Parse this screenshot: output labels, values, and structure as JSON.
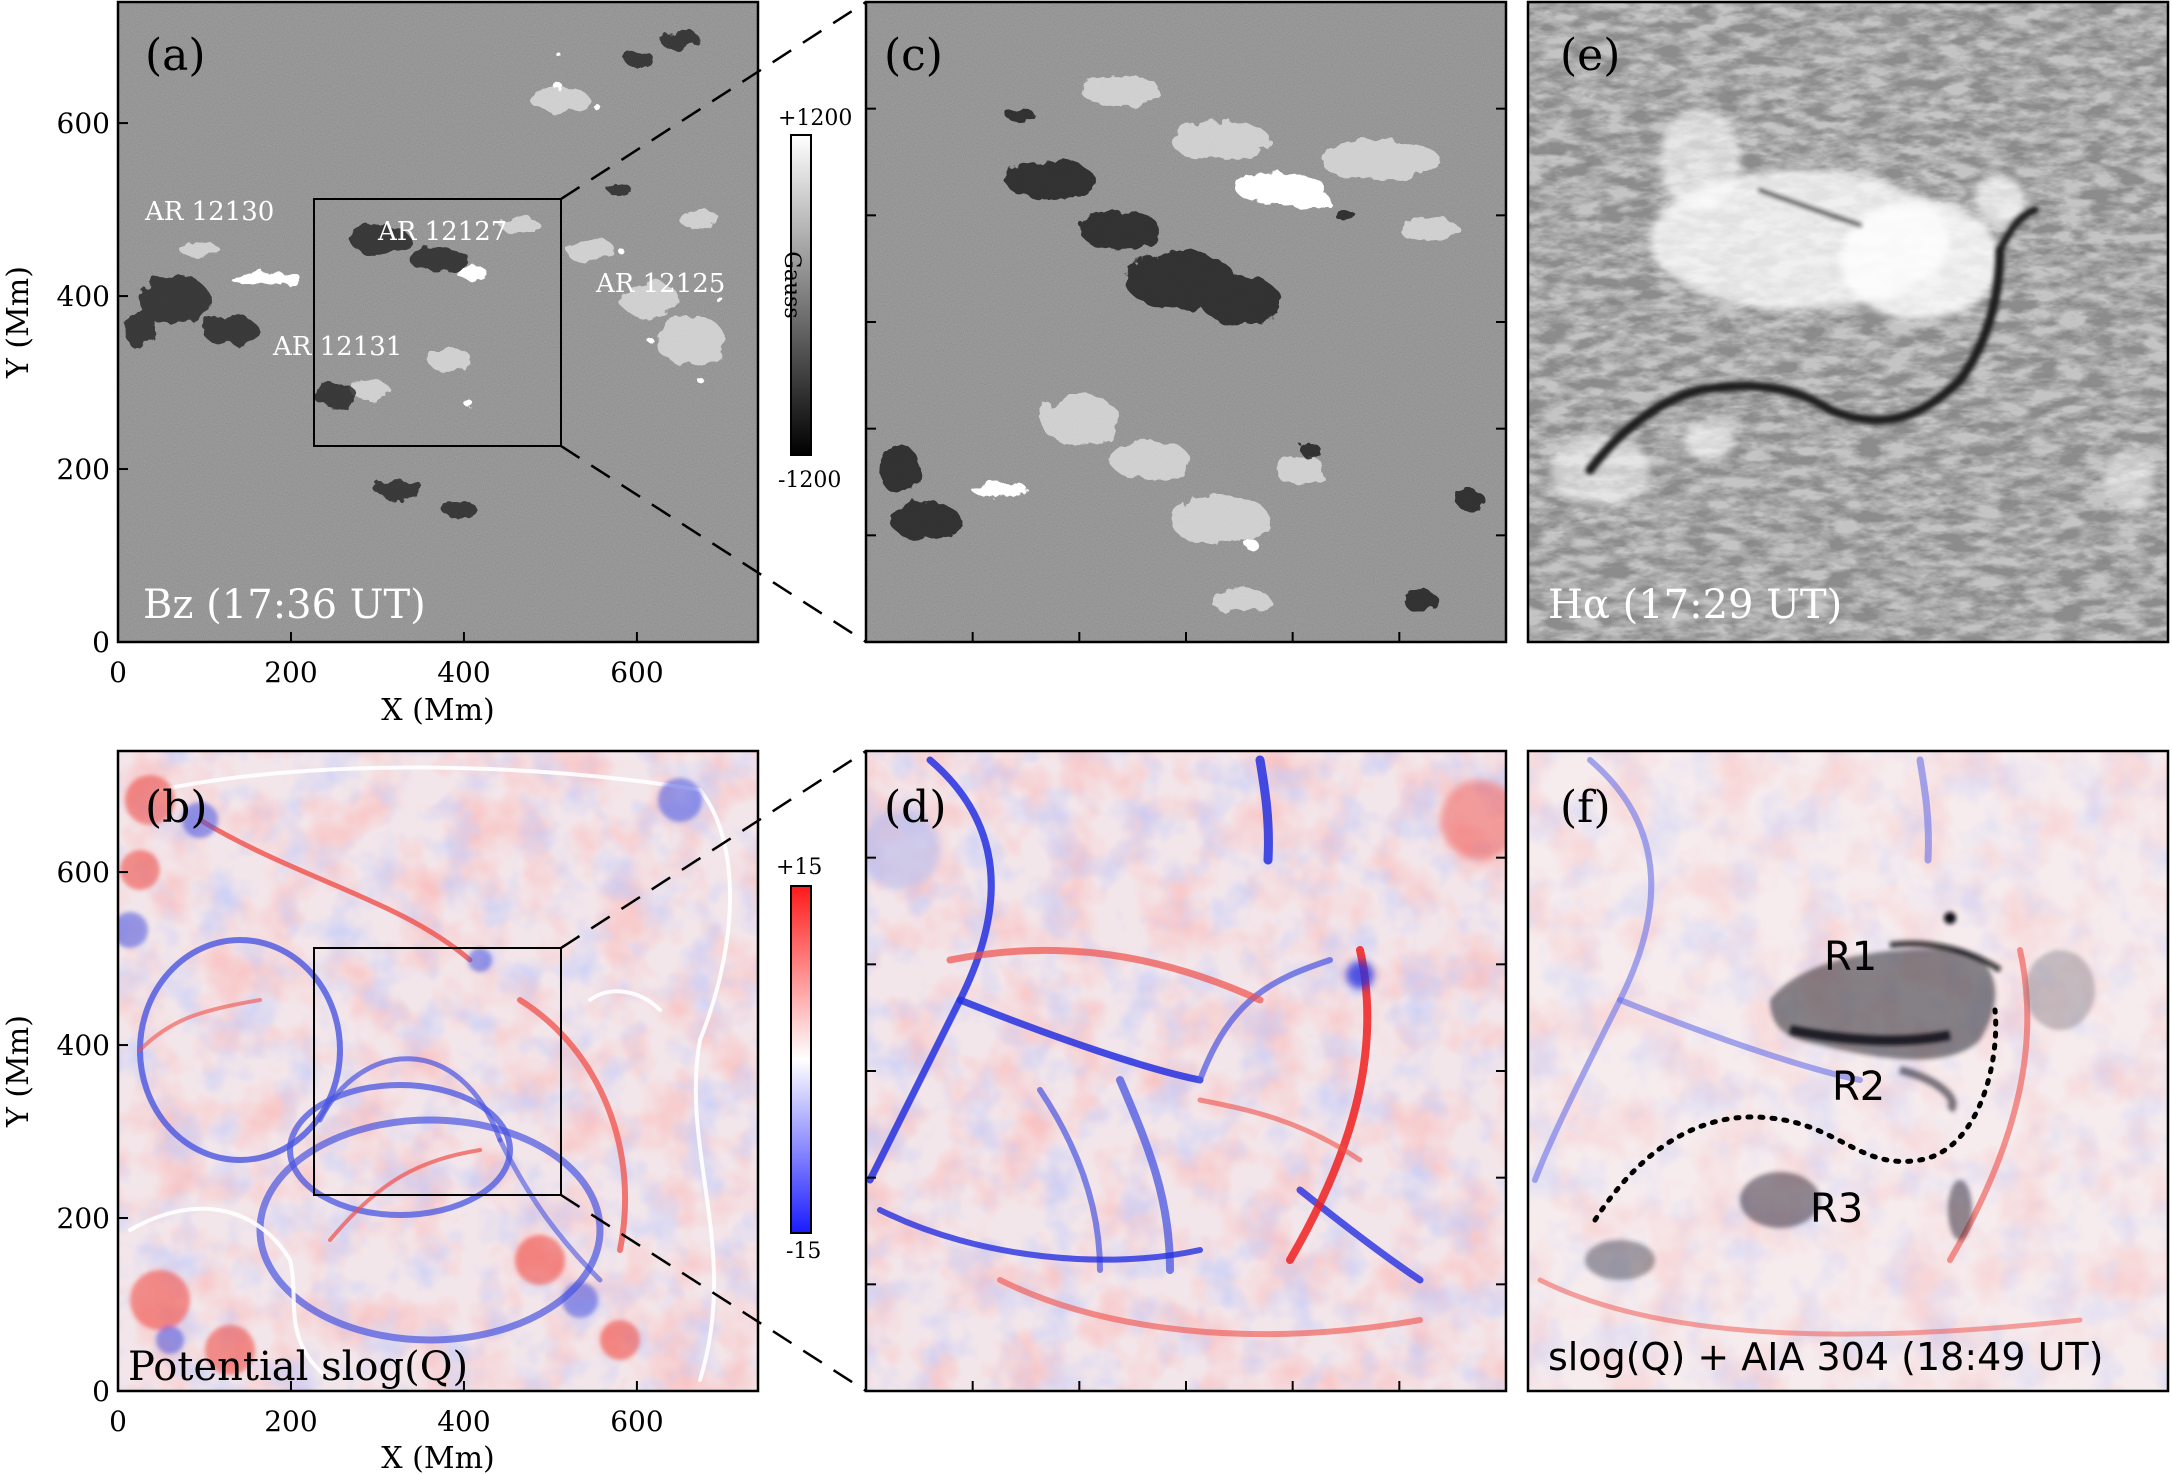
{
  "panels": {
    "a": {
      "letter": "(a)",
      "caption": "Bz (17:36 UT)",
      "labels": [
        "AR 12130",
        "AR 12127",
        "AR 12131",
        "AR 12125"
      ]
    },
    "b": {
      "letter": "(b)",
      "caption": "Potential slog(Q)"
    },
    "c": {
      "letter": "(c)"
    },
    "d": {
      "letter": "(d)"
    },
    "e": {
      "letter": "(e)",
      "caption": "Hα (17:29 UT)"
    },
    "f": {
      "letter": "(f)",
      "caption": "slog(Q) + AIA 304 (18:49 UT)",
      "regions": [
        "R1",
        "R2",
        "R3"
      ]
    }
  },
  "axes": {
    "x_label": "X (Mm)",
    "y_label": "Y (Mm)",
    "x_ticks": [
      "0",
      "200",
      "400",
      "600"
    ],
    "y_ticks": [
      "0",
      "200",
      "400",
      "600"
    ],
    "x_range": [
      0,
      740
    ],
    "y_range": [
      0,
      740
    ]
  },
  "colorbar_bz": {
    "top": "+1200",
    "bottom": "-1200",
    "unit": "Gauss",
    "colors": [
      "#ffffff",
      "#000000"
    ]
  },
  "colorbar_q": {
    "top": "+15",
    "bottom": "-15",
    "colors": [
      "#ff1a1a",
      "#ffffff",
      "#1a1aff"
    ]
  },
  "colors": {
    "magnetogram_bg": "#8a8a8a",
    "halpha_bg": "#8c8c8c",
    "q_positive": "#f0504a",
    "q_negative": "#4a55e0",
    "q_bg": "#f4e4e6"
  },
  "zoom_box_mm": {
    "x": [
      225,
      510
    ],
    "y": [
      225,
      510
    ]
  }
}
